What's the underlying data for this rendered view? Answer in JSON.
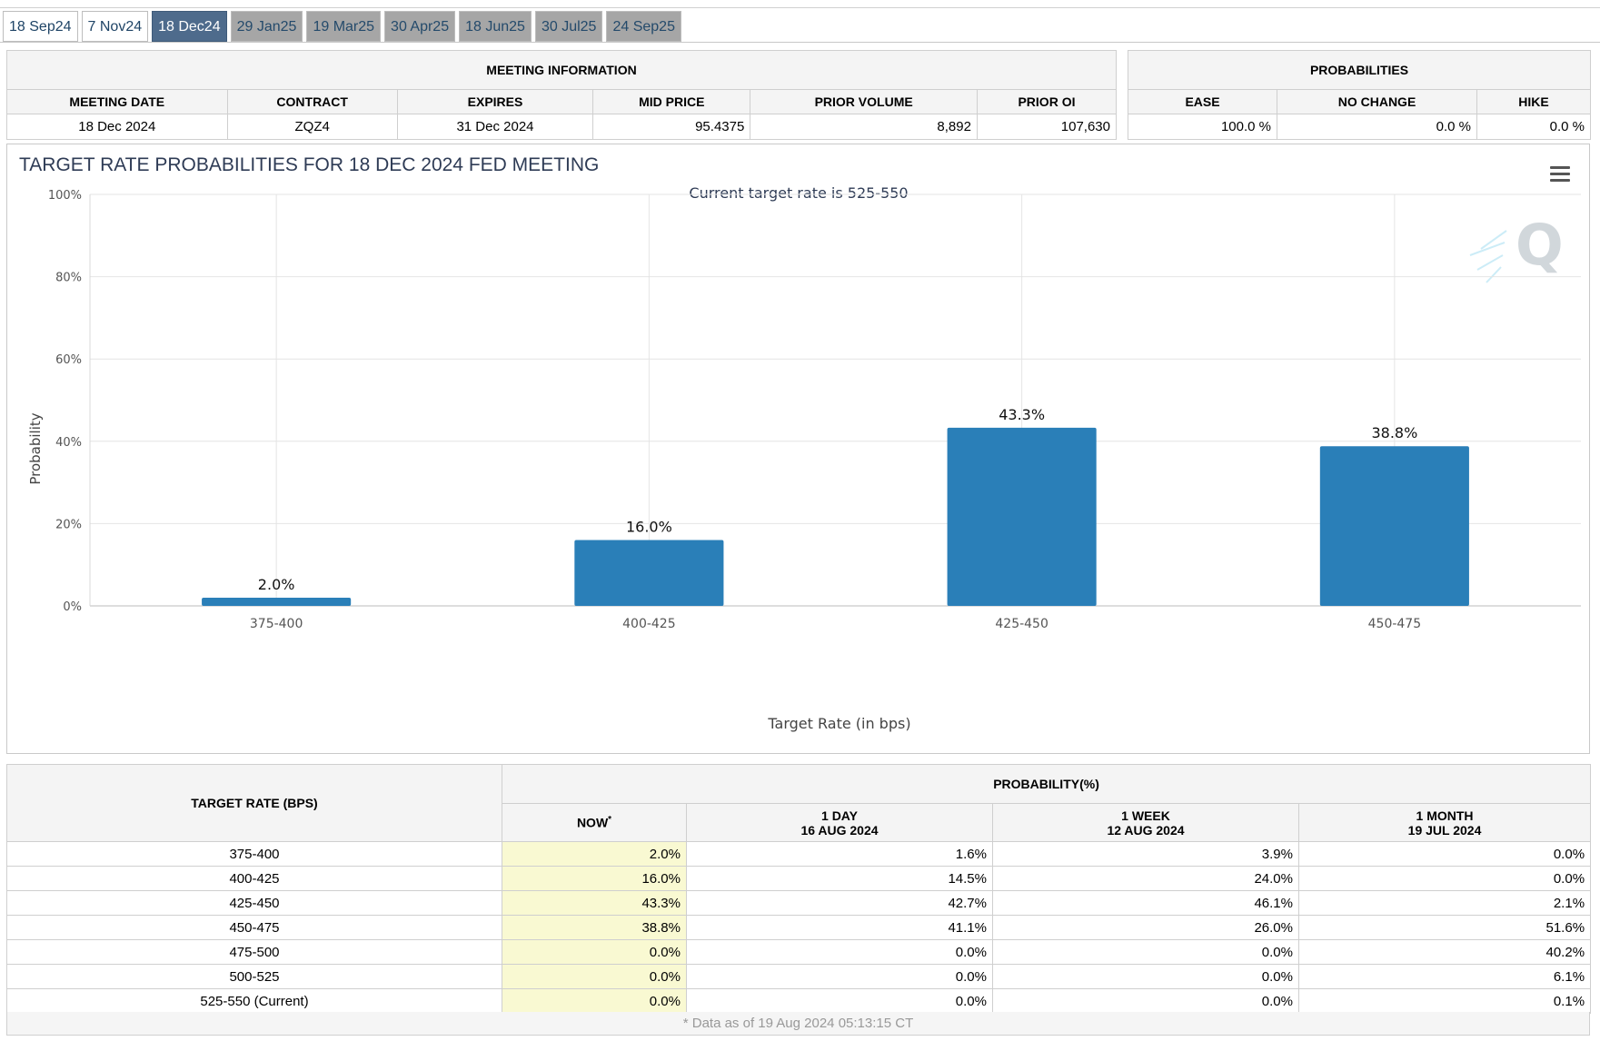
{
  "tabs": [
    {
      "label": "18 Sep24",
      "state": "past"
    },
    {
      "label": "7 Nov24",
      "state": "past"
    },
    {
      "label": "18 Dec24",
      "state": "active"
    },
    {
      "label": "29 Jan25",
      "state": "future"
    },
    {
      "label": "19 Mar25",
      "state": "future"
    },
    {
      "label": "30 Apr25",
      "state": "future"
    },
    {
      "label": "18 Jun25",
      "state": "future"
    },
    {
      "label": "30 Jul25",
      "state": "future"
    },
    {
      "label": "24 Sep25",
      "state": "future"
    }
  ],
  "meeting_info": {
    "title": "MEETING INFORMATION",
    "headers": [
      "MEETING DATE",
      "CONTRACT",
      "EXPIRES",
      "MID PRICE",
      "PRIOR VOLUME",
      "PRIOR OI"
    ],
    "values": [
      "18 Dec 2024",
      "ZQZ4",
      "31 Dec 2024",
      "95.4375",
      "8,892",
      "107,630"
    ]
  },
  "probabilities": {
    "title": "PROBABILITIES",
    "headers": [
      "EASE",
      "NO CHANGE",
      "HIKE"
    ],
    "values": [
      "100.0 %",
      "0.0 %",
      "0.0 %"
    ]
  },
  "chart_data": {
    "type": "bar",
    "title": "TARGET RATE PROBABILITIES FOR 18 DEC 2024 FED MEETING",
    "subtitle": "Current target rate is 525-550",
    "xlabel": "Target Rate (in bps)",
    "ylabel": "Probability",
    "categories": [
      "375-400",
      "400-425",
      "425-450",
      "450-475"
    ],
    "values": [
      2.0,
      16.0,
      43.3,
      38.8
    ],
    "data_labels": [
      "2.0%",
      "16.0%",
      "43.3%",
      "38.8%"
    ],
    "ylim": [
      0,
      100
    ],
    "yticks": [
      "0%",
      "20%",
      "40%",
      "60%",
      "80%",
      "100%"
    ],
    "grid": true,
    "bar_color": "#2a7fb8"
  },
  "prob_table": {
    "rate_header": "TARGET RATE (BPS)",
    "group_header": "PROBABILITY(%)",
    "col_now": "NOW",
    "col_now_mark": "*",
    "col_1day_a": "1 DAY",
    "col_1day_b": "16 AUG 2024",
    "col_1week_a": "1 WEEK",
    "col_1week_b": "12 AUG 2024",
    "col_1month_a": "1 MONTH",
    "col_1month_b": "19 JUL 2024",
    "rows": [
      [
        "375-400",
        "2.0%",
        "1.6%",
        "3.9%",
        "0.0%"
      ],
      [
        "400-425",
        "16.0%",
        "14.5%",
        "24.0%",
        "0.0%"
      ],
      [
        "425-450",
        "43.3%",
        "42.7%",
        "46.1%",
        "2.1%"
      ],
      [
        "450-475",
        "38.8%",
        "41.1%",
        "26.0%",
        "51.6%"
      ],
      [
        "475-500",
        "0.0%",
        "0.0%",
        "0.0%",
        "40.2%"
      ],
      [
        "500-525",
        "0.0%",
        "0.0%",
        "0.0%",
        "6.1%"
      ],
      [
        "525-550 (Current)",
        "0.0%",
        "0.0%",
        "0.0%",
        "0.1%"
      ]
    ],
    "footnote": "* Data as of 19 Aug 2024 05:13:15 CT"
  }
}
